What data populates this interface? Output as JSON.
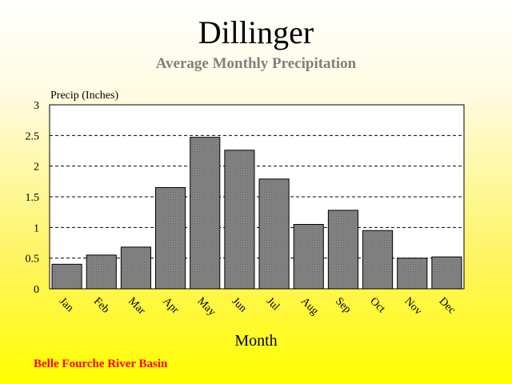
{
  "chart_data": {
    "type": "bar",
    "title": "Dillinger",
    "subtitle": "Average Monthly Precipitation",
    "ylabel": "Precip (Inches)",
    "xlabel": "Month",
    "categories": [
      "Jan",
      "Feb",
      "Mar",
      "Apr",
      "May",
      "Jun",
      "Jul",
      "Aug",
      "Sep",
      "Oct",
      "Nov",
      "Dec"
    ],
    "values": [
      0.4,
      0.55,
      0.68,
      1.65,
      2.47,
      2.26,
      1.79,
      1.05,
      1.28,
      0.95,
      0.5,
      0.52
    ],
    "ylim": [
      0,
      3
    ],
    "yticks": [
      "0",
      "0.5",
      "1",
      "1.5",
      "2",
      "2.5",
      "3"
    ],
    "grid": true,
    "grid_style": "dashed",
    "bar_color": "#808080",
    "footer": "Belle Fourche River Basin"
  },
  "colors": {
    "footer_text": "#ff0000",
    "subtitle_text": "#808080",
    "plot_background": "#ffffff"
  }
}
